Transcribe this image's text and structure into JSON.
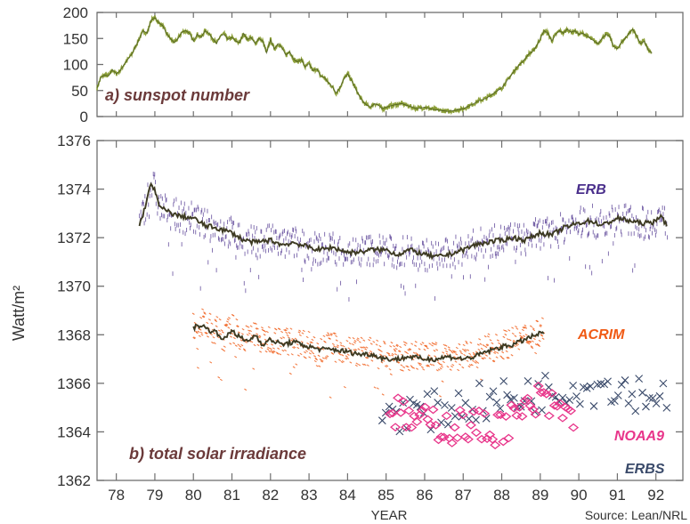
{
  "chart_data": [
    {
      "type": "line",
      "panel": "top",
      "title": "a) sunspot number",
      "xlabel": "",
      "ylabel": "",
      "xlim": [
        77.5,
        92.7
      ],
      "ylim": [
        0,
        200
      ],
      "yticks": [
        "0",
        "50",
        "100",
        "150",
        "200"
      ],
      "grid": false,
      "series": [
        {
          "points": [
            [
              77.5,
              55
            ],
            [
              77.6,
              75
            ],
            [
              77.7,
              80
            ],
            [
              77.8,
              78
            ],
            [
              77.9,
              90
            ],
            [
              78.0,
              82
            ],
            [
              78.1,
              88
            ],
            [
              78.2,
              100
            ],
            [
              78.4,
              120
            ],
            [
              78.5,
              135
            ],
            [
              78.6,
              150
            ],
            [
              78.7,
              165
            ],
            [
              78.8,
              160
            ],
            [
              78.9,
              185
            ],
            [
              79.0,
              190
            ],
            [
              79.1,
              180
            ],
            [
              79.2,
              175
            ],
            [
              79.3,
              160
            ],
            [
              79.4,
              150
            ],
            [
              79.5,
              142
            ],
            [
              79.6,
              150
            ],
            [
              79.7,
              162
            ],
            [
              79.8,
              165
            ],
            [
              79.9,
              160
            ],
            [
              80.0,
              145
            ],
            [
              80.1,
              158
            ],
            [
              80.2,
              152
            ],
            [
              80.3,
              165
            ],
            [
              80.4,
              160
            ],
            [
              80.5,
              150
            ],
            [
              80.6,
              140
            ],
            [
              80.7,
              155
            ],
            [
              80.8,
              158
            ],
            [
              80.9,
              148
            ],
            [
              81.0,
              152
            ],
            [
              81.1,
              145
            ],
            [
              81.2,
              142
            ],
            [
              81.3,
              160
            ],
            [
              81.4,
              148
            ],
            [
              81.5,
              152
            ],
            [
              81.6,
              140
            ],
            [
              81.7,
              150
            ],
            [
              81.8,
              145
            ],
            [
              81.9,
              122
            ],
            [
              82.0,
              148
            ],
            [
              82.1,
              130
            ],
            [
              82.2,
              140
            ],
            [
              82.3,
              132
            ],
            [
              82.4,
              118
            ],
            [
              82.5,
              125
            ],
            [
              82.6,
              110
            ],
            [
              82.7,
              105
            ],
            [
              82.8,
              110
            ],
            [
              82.9,
              95
            ],
            [
              83.0,
              102
            ],
            [
              83.1,
              88
            ],
            [
              83.2,
              92
            ],
            [
              83.3,
              78
            ],
            [
              83.4,
              75
            ],
            [
              83.5,
              65
            ],
            [
              83.6,
              58
            ],
            [
              83.7,
              45
            ],
            [
              83.8,
              55
            ],
            [
              83.9,
              72
            ],
            [
              84.0,
              82
            ],
            [
              84.1,
              70
            ],
            [
              84.2,
              55
            ],
            [
              84.3,
              40
            ],
            [
              84.4,
              28
            ],
            [
              84.5,
              22
            ],
            [
              84.6,
              18
            ],
            [
              84.7,
              25
            ],
            [
              84.8,
              22
            ],
            [
              84.9,
              15
            ],
            [
              85.0,
              18
            ],
            [
              85.2,
              22
            ],
            [
              85.4,
              25
            ],
            [
              85.6,
              20
            ],
            [
              85.8,
              15
            ],
            [
              86.0,
              18
            ],
            [
              86.2,
              14
            ],
            [
              86.4,
              12
            ],
            [
              86.6,
              10
            ],
            [
              86.8,
              12
            ],
            [
              87.0,
              15
            ],
            [
              87.2,
              22
            ],
            [
              87.4,
              30
            ],
            [
              87.6,
              35
            ],
            [
              87.8,
              45
            ],
            [
              88.0,
              55
            ],
            [
              88.2,
              75
            ],
            [
              88.4,
              95
            ],
            [
              88.6,
              110
            ],
            [
              88.7,
              120
            ],
            [
              88.8,
              125
            ],
            [
              88.9,
              135
            ],
            [
              89.0,
              150
            ],
            [
              89.1,
              165
            ],
            [
              89.2,
              160
            ],
            [
              89.3,
              145
            ],
            [
              89.4,
              158
            ],
            [
              89.5,
              165
            ],
            [
              89.6,
              160
            ],
            [
              89.7,
              168
            ],
            [
              89.8,
              162
            ],
            [
              89.9,
              165
            ],
            [
              90.0,
              158
            ],
            [
              90.1,
              160
            ],
            [
              90.2,
              155
            ],
            [
              90.3,
              150
            ],
            [
              90.4,
              145
            ],
            [
              90.5,
              140
            ],
            [
              90.6,
              150
            ],
            [
              90.7,
              158
            ],
            [
              90.8,
              155
            ],
            [
              90.9,
              135
            ],
            [
              91.0,
              130
            ],
            [
              91.1,
              142
            ],
            [
              91.2,
              150
            ],
            [
              91.3,
              160
            ],
            [
              91.4,
              168
            ],
            [
              91.5,
              155
            ],
            [
              91.6,
              140
            ],
            [
              91.7,
              145
            ],
            [
              91.8,
              128
            ],
            [
              91.9,
              122
            ]
          ]
        }
      ]
    },
    {
      "type": "scatter",
      "panel": "bottom",
      "title": "b) total solar irradiance",
      "xlabel": "YEAR",
      "ylabel": "Watt/m²",
      "xlim": [
        77.5,
        92.7
      ],
      "ylim": [
        1362,
        1376
      ],
      "xticks": [
        "78",
        "79",
        "80",
        "81",
        "82",
        "83",
        "84",
        "85",
        "86",
        "87",
        "88",
        "89",
        "90",
        "91",
        "92"
      ],
      "yticks": [
        "1362",
        "1364",
        "1366",
        "1368",
        "1370",
        "1372",
        "1374",
        "1376"
      ],
      "grid": false,
      "source": "Source: Lean/NRL",
      "series": [
        {
          "name": "ERB",
          "color": "#4a2f8c",
          "mean": [
            [
              78.6,
              1372.5
            ],
            [
              78.7,
              1373.0
            ],
            [
              78.8,
              1373.6
            ],
            [
              78.9,
              1374.2
            ],
            [
              79.0,
              1374.0
            ],
            [
              79.1,
              1373.3
            ],
            [
              79.3,
              1373.1
            ],
            [
              79.6,
              1372.9
            ],
            [
              80.0,
              1372.8
            ],
            [
              80.3,
              1372.5
            ],
            [
              80.6,
              1372.4
            ],
            [
              81.0,
              1372.2
            ],
            [
              81.3,
              1371.9
            ],
            [
              81.6,
              1371.8
            ],
            [
              82.0,
              1371.9
            ],
            [
              82.3,
              1371.7
            ],
            [
              82.6,
              1371.8
            ],
            [
              83.0,
              1371.6
            ],
            [
              83.3,
              1371.5
            ],
            [
              83.6,
              1371.6
            ],
            [
              84.0,
              1371.4
            ],
            [
              84.3,
              1371.4
            ],
            [
              84.6,
              1371.5
            ],
            [
              85.0,
              1371.5
            ],
            [
              85.3,
              1371.3
            ],
            [
              85.6,
              1371.5
            ],
            [
              86.0,
              1371.3
            ],
            [
              86.3,
              1371.2
            ],
            [
              86.6,
              1371.3
            ],
            [
              87.0,
              1371.5
            ],
            [
              87.3,
              1371.7
            ],
            [
              87.6,
              1371.8
            ],
            [
              88.0,
              1371.9
            ],
            [
              88.3,
              1372.0
            ],
            [
              88.6,
              1371.9
            ],
            [
              89.0,
              1372.2
            ],
            [
              89.3,
              1372.1
            ],
            [
              89.6,
              1372.4
            ],
            [
              90.0,
              1372.6
            ],
            [
              90.3,
              1372.7
            ],
            [
              90.6,
              1372.5
            ],
            [
              91.0,
              1372.8
            ],
            [
              91.3,
              1372.7
            ],
            [
              91.6,
              1372.6
            ],
            [
              91.9,
              1372.6
            ],
            [
              92.1,
              1372.9
            ],
            [
              92.3,
              1372.5
            ]
          ]
        },
        {
          "name": "ACRIM",
          "color": "#f05a14",
          "mean": [
            [
              80.0,
              1368.3
            ],
            [
              80.2,
              1368.4
            ],
            [
              80.4,
              1368.2
            ],
            [
              80.6,
              1368.1
            ],
            [
              80.8,
              1367.8
            ],
            [
              81.0,
              1368.2
            ],
            [
              81.2,
              1367.9
            ],
            [
              81.4,
              1367.7
            ],
            [
              81.6,
              1368.0
            ],
            [
              81.8,
              1367.6
            ],
            [
              82.0,
              1367.8
            ],
            [
              82.3,
              1367.6
            ],
            [
              82.6,
              1367.7
            ],
            [
              83.0,
              1367.5
            ],
            [
              83.3,
              1367.4
            ],
            [
              83.6,
              1367.4
            ],
            [
              84.0,
              1367.3
            ],
            [
              84.3,
              1367.2
            ],
            [
              84.6,
              1367.2
            ],
            [
              85.0,
              1367.0
            ],
            [
              85.3,
              1367.0
            ],
            [
              85.6,
              1367.1
            ],
            [
              86.0,
              1367.0
            ],
            [
              86.3,
              1367.0
            ],
            [
              86.6,
              1367.1
            ],
            [
              87.0,
              1367.0
            ],
            [
              87.3,
              1367.1
            ],
            [
              87.6,
              1367.3
            ],
            [
              88.0,
              1367.5
            ],
            [
              88.3,
              1367.6
            ],
            [
              88.6,
              1367.8
            ],
            [
              88.9,
              1368.0
            ],
            [
              89.1,
              1368.1
            ]
          ]
        },
        {
          "name": "ERBS",
          "color": "#3a4a6a",
          "mean": [
            [
              84.9,
              1364.9
            ],
            [
              85.3,
              1364.8
            ],
            [
              85.6,
              1364.9
            ],
            [
              86.0,
              1364.8
            ],
            [
              86.3,
              1364.9
            ],
            [
              86.7,
              1365.0
            ],
            [
              87.0,
              1365.1
            ],
            [
              87.3,
              1365.2
            ],
            [
              87.7,
              1365.2
            ],
            [
              88.0,
              1365.4
            ],
            [
              88.3,
              1365.3
            ],
            [
              88.7,
              1365.6
            ],
            [
              89.0,
              1365.6
            ],
            [
              89.3,
              1365.7
            ],
            [
              89.7,
              1365.9
            ],
            [
              90.0,
              1365.9
            ],
            [
              90.3,
              1365.8
            ],
            [
              90.7,
              1366.0
            ],
            [
              91.0,
              1365.9
            ],
            [
              91.3,
              1365.7
            ],
            [
              91.7,
              1365.6
            ],
            [
              92.0,
              1365.5
            ],
            [
              92.3,
              1365.6
            ]
          ]
        },
        {
          "name": "NOAA9",
          "color": "#e8358a",
          "mean": [
            [
              85.1,
              1365.0
            ],
            [
              85.4,
              1364.6
            ],
            [
              85.7,
              1364.5
            ],
            [
              86.0,
              1364.3
            ],
            [
              86.3,
              1364.4
            ],
            [
              86.7,
              1364.2
            ],
            [
              87.0,
              1364.3
            ],
            [
              87.3,
              1364.2
            ],
            [
              87.7,
              1364.1
            ],
            [
              88.0,
              1364.3
            ],
            [
              88.3,
              1364.5
            ],
            [
              88.7,
              1364.9
            ],
            [
              89.0,
              1365.3
            ],
            [
              89.3,
              1365.0
            ],
            [
              89.6,
              1364.8
            ],
            [
              89.9,
              1364.5
            ]
          ]
        }
      ]
    }
  ]
}
